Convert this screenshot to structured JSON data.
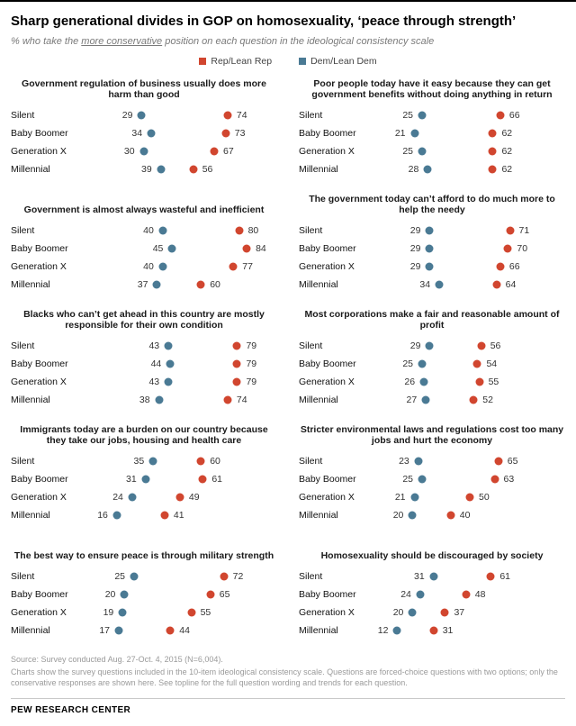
{
  "header": {
    "title": "Sharp generational divides in GOP on homosexuality, ‘peace through strength’",
    "subtitle_prefix": "% who take the ",
    "subtitle_underline": "more conservative",
    "subtitle_suffix": " position on each question in the ideological consistency scale",
    "legend": [
      {
        "label": "Rep/Lean Rep",
        "color": "#d1462f"
      },
      {
        "label": "Dem/Lean Dem",
        "color": "#4a7a94"
      }
    ]
  },
  "chart_data": {
    "type": "scatter",
    "subtype": "dot-plot-small-multiples",
    "categories": [
      "Silent",
      "Baby Boomer",
      "Generation X",
      "Millennial"
    ],
    "xlim": [
      0,
      100
    ],
    "grid": false,
    "legend_position": "top",
    "colors": {
      "dem": "#4a7a94",
      "rep": "#d1462f"
    },
    "panels": [
      {
        "title": "Government regulation of business usually does more harm than good",
        "series": [
          {
            "name": "Dem/Lean Dem",
            "values": [
              29,
              34,
              30,
              39
            ]
          },
          {
            "name": "Rep/Lean Rep",
            "values": [
              74,
              73,
              67,
              56
            ]
          }
        ]
      },
      {
        "title": "Poor people today have it easy because they can get government benefits without doing anything in return",
        "series": [
          {
            "name": "Dem/Lean Dem",
            "values": [
              25,
              21,
              25,
              28
            ]
          },
          {
            "name": "Rep/Lean Rep",
            "values": [
              66,
              62,
              62,
              62
            ]
          }
        ]
      },
      {
        "title": "Government is almost always wasteful and inefficient",
        "series": [
          {
            "name": "Dem/Lean Dem",
            "values": [
              40,
              45,
              40,
              37
            ]
          },
          {
            "name": "Rep/Lean Rep",
            "values": [
              80,
              84,
              77,
              60
            ]
          }
        ]
      },
      {
        "title": "The government today can’t afford to do much more to help the needy",
        "series": [
          {
            "name": "Dem/Lean Dem",
            "values": [
              29,
              29,
              29,
              34
            ]
          },
          {
            "name": "Rep/Lean Rep",
            "values": [
              71,
              70,
              66,
              64
            ]
          }
        ]
      },
      {
        "title": "Blacks who can’t get ahead in this country are mostly responsible for their own condition",
        "series": [
          {
            "name": "Dem/Lean Dem",
            "values": [
              43,
              44,
              43,
              38
            ]
          },
          {
            "name": "Rep/Lean Rep",
            "values": [
              79,
              79,
              79,
              74
            ]
          }
        ]
      },
      {
        "title": "Most corporations make a fair and reasonable amount of profit",
        "series": [
          {
            "name": "Dem/Lean Dem",
            "values": [
              29,
              25,
              26,
              27
            ]
          },
          {
            "name": "Rep/Lean Rep",
            "values": [
              56,
              54,
              55,
              52
            ]
          }
        ]
      },
      {
        "title": "Immigrants today are a burden on our country because they take our jobs, housing and health care",
        "series": [
          {
            "name": "Dem/Lean Dem",
            "values": [
              35,
              31,
              24,
              16
            ]
          },
          {
            "name": "Rep/Lean Rep",
            "values": [
              60,
              61,
              49,
              41
            ]
          }
        ]
      },
      {
        "title": "Stricter environmental laws and regulations cost too many jobs and hurt the economy",
        "series": [
          {
            "name": "Dem/Lean Dem",
            "values": [
              23,
              25,
              21,
              20
            ]
          },
          {
            "name": "Rep/Lean Rep",
            "values": [
              65,
              63,
              50,
              40
            ]
          }
        ]
      },
      {
        "title": "The best way to ensure peace is through military strength",
        "series": [
          {
            "name": "Dem/Lean Dem",
            "values": [
              25,
              20,
              19,
              17
            ]
          },
          {
            "name": "Rep/Lean Rep",
            "values": [
              72,
              65,
              55,
              44
            ]
          }
        ]
      },
      {
        "title": "Homosexuality should be discouraged by society",
        "series": [
          {
            "name": "Dem/Lean Dem",
            "values": [
              31,
              24,
              20,
              12
            ]
          },
          {
            "name": "Rep/Lean Rep",
            "values": [
              61,
              48,
              37,
              31
            ]
          }
        ]
      }
    ]
  },
  "footer": {
    "source": "Source: Survey conducted Aug. 27-Oct. 4, 2015 (N=6,004).",
    "note": "Charts show the survey questions included in the 10-item ideological consistency scale. Questions are forced-choice questions with two options; only the conservative responses are shown here. See topline for the full question wording and trends for each question.",
    "brand": "PEW RESEARCH CENTER"
  }
}
